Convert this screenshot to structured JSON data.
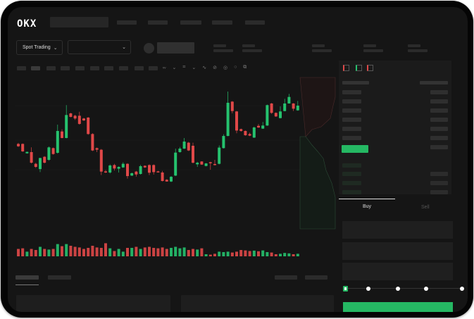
{
  "header": {
    "logo": "OKX",
    "nav_count": 5
  },
  "toolbar": {
    "market_select": "Spot Trading",
    "pair_select": ""
  },
  "order_form": {
    "buy_tab": "Buy",
    "sell_tab": "Sell",
    "leverage_steps": 5,
    "selected_step": 0
  },
  "colors": {
    "up": "#25c26e",
    "down": "#e04848",
    "background": "#151515",
    "accent": "#25b863"
  },
  "chart_data": {
    "type": "candlestick",
    "candles": [
      [
        42.5,
        43.5,
        39.5,
        40.2
      ],
      [
        42.5,
        43,
        34.7,
        35.2
      ],
      [
        33.3,
        35,
        33,
        34.7
      ],
      [
        34.5,
        39.1,
        23.4,
        24.1
      ],
      [
        23,
        24,
        19,
        20
      ],
      [
        17.9,
        29,
        14.9,
        28.7
      ],
      [
        29.9,
        30.5,
        23.4,
        24.1
      ],
      [
        26.9,
        40,
        26,
        39.1
      ],
      [
        38.4,
        39,
        32,
        32.6
      ],
      [
        33.8,
        61.4,
        33,
        55.2
      ],
      [
        54.7,
        56.8,
        48,
        48.3
      ],
      [
        48.3,
        80.5,
        48,
        70.8
      ],
      [
        72.4,
        73,
        68.5,
        69
      ],
      [
        70.1,
        71,
        66,
        67.4
      ],
      [
        70.1,
        74,
        61.4,
        62.1
      ],
      [
        67.4,
        68,
        65,
        65.5
      ],
      [
        68.3,
        68.8,
        51.5,
        52.2
      ],
      [
        52.2,
        53,
        35.5,
        36.1
      ],
      [
        38.4,
        39,
        34.5,
        36.8
      ],
      [
        36.8,
        37.5,
        12,
        15.4
      ],
      [
        15.6,
        17,
        14,
        14.5
      ],
      [
        14.5,
        22.5,
        13.5,
        21.4
      ],
      [
        21.8,
        23,
        16.5,
        18.4
      ],
      [
        18.2,
        20.5,
        14.5,
        20
      ],
      [
        19.5,
        24.5,
        19,
        23
      ],
      [
        23,
        23.5,
        8.5,
        11
      ],
      [
        11.5,
        14.5,
        11,
        13.8
      ],
      [
        15.4,
        16,
        10.5,
        12.6
      ],
      [
        13.1,
        22,
        12.5,
        20.7
      ],
      [
        21.1,
        21.5,
        19,
        19.5
      ],
      [
        21.8,
        22.5,
        12,
        14.3
      ],
      [
        21.8,
        22.5,
        12.5,
        14.9
      ],
      [
        15.6,
        16.2,
        14.5,
        14.9
      ],
      [
        14.5,
        16,
        5.8,
        6.2
      ],
      [
        7.4,
        8,
        5.5,
        5.7
      ],
      [
        5.7,
        11,
        5.2,
        10.3
      ],
      [
        11.5,
        37.9,
        11,
        34
      ],
      [
        34.5,
        39.5,
        34,
        37.9
      ],
      [
        37.9,
        48.3,
        37.5,
        44.8
      ],
      [
        43.7,
        44.5,
        35.5,
        36.1
      ],
      [
        40.7,
        43.7,
        23.4,
        24.1
      ],
      [
        22.5,
        25,
        20,
        24.1
      ],
      [
        25.3,
        25.5,
        22,
        22.3
      ],
      [
        20.9,
        23.8,
        20.5,
        23.4
      ],
      [
        24.6,
        25,
        17.2,
        23.7
      ],
      [
        22.8,
        26.9,
        21.5,
        21.8
      ],
      [
        23,
        41,
        22.5,
        38.9
      ],
      [
        38.4,
        52,
        38,
        50.3
      ],
      [
        50.3,
        93.8,
        50,
        82.8
      ],
      [
        83.9,
        84.5,
        72.5,
        74.7
      ],
      [
        74.3,
        74.8,
        52.9,
        55.6
      ],
      [
        57,
        57.5,
        54.5,
        55.2
      ],
      [
        55.2,
        55.6,
        50.5,
        51
      ],
      [
        52.2,
        53.5,
        50.2,
        50.6
      ],
      [
        48.7,
        59.5,
        48.3,
        58.6
      ],
      [
        60.2,
        62,
        58.2,
        58.6
      ],
      [
        57.5,
        64,
        57.2,
        60.5
      ],
      [
        60.5,
        81,
        60.2,
        80.5
      ],
      [
        82.1,
        82.6,
        72,
        72.9
      ],
      [
        72.9,
        73.4,
        69,
        69.4
      ],
      [
        67.8,
        79.3,
        67.5,
        74.3
      ],
      [
        74.7,
        86.7,
        74.4,
        82.1
      ],
      [
        82.1,
        91.5,
        82,
        88.5
      ],
      [
        82.1,
        82.5,
        74.7,
        77
      ],
      [
        75.4,
        84.6,
        75,
        80
      ]
    ],
    "volumes": [
      35,
      38,
      22,
      35,
      30,
      45,
      35,
      32,
      35,
      58,
      48,
      58,
      50,
      45,
      42,
      35,
      40,
      50,
      42,
      40,
      62,
      38,
      25,
      35,
      22,
      40,
      40,
      45,
      35,
      42,
      45,
      40,
      38,
      42,
      35,
      40,
      45,
      38,
      42,
      30,
      35,
      32,
      38,
      10,
      8,
      12,
      22,
      20,
      22,
      18,
      22,
      30,
      28,
      25,
      27,
      24,
      28,
      20,
      18,
      10,
      12,
      16,
      14,
      10,
      12
    ]
  }
}
